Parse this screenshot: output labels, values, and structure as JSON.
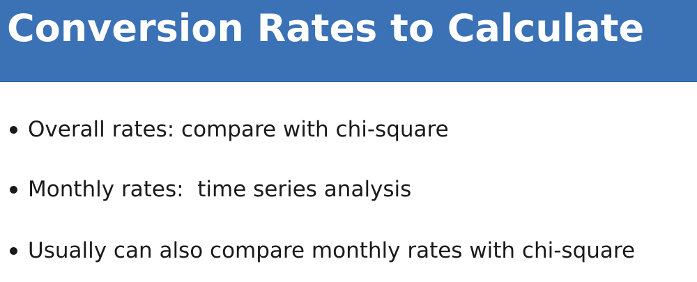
{
  "slide": {
    "title": "Conversion Rates to Calculate",
    "header_color": "#3b71b5",
    "bullets": [
      {
        "text": "Overall rates: compare with chi-square"
      },
      {
        "text": "Monthly rates:  time series analysis"
      },
      {
        "text": "Usually can also compare monthly rates with chi-square"
      }
    ]
  }
}
